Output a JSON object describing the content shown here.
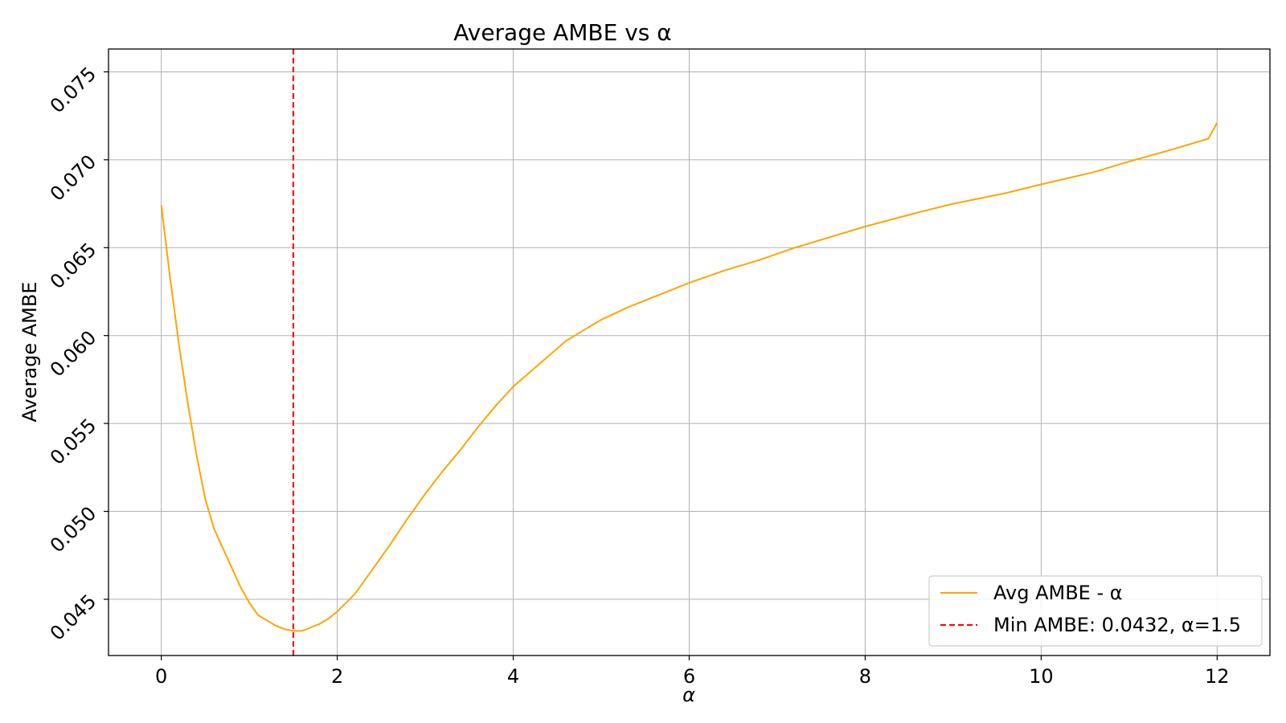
{
  "chart_data": {
    "type": "line",
    "title": "Average AMBE vs α",
    "xlabel": "α",
    "ylabel": "Average AMBE",
    "xlim": [
      -0.6,
      12.6
    ],
    "ylim": [
      0.0418,
      0.0763
    ],
    "x_ticks": [
      0,
      2,
      4,
      6,
      8,
      10,
      12
    ],
    "x_tick_labels": [
      "0",
      "2",
      "4",
      "6",
      "8",
      "10",
      "12"
    ],
    "y_ticks": [
      0.045,
      0.05,
      0.055,
      0.06,
      0.065,
      0.07,
      0.075
    ],
    "y_tick_labels": [
      "0.045",
      "0.050",
      "0.055",
      "0.060",
      "0.065",
      "0.070",
      "0.075"
    ],
    "grid": true,
    "legend_position": "lower-right",
    "series": [
      {
        "name": "Avg AMBE - α",
        "color": "#FFA500",
        "style": "solid",
        "x": [
          0,
          0.1,
          0.2,
          0.3,
          0.4,
          0.5,
          0.6,
          0.7,
          0.8,
          0.9,
          1.0,
          1.1,
          1.2,
          1.3,
          1.4,
          1.5,
          1.6,
          1.7,
          1.8,
          1.9,
          2.0,
          2.2,
          2.4,
          2.6,
          2.8,
          3.0,
          3.2,
          3.4,
          3.6,
          3.8,
          4.0,
          4.3,
          4.6,
          5.0,
          5.3,
          5.7,
          6.0,
          6.4,
          6.8,
          7.2,
          7.6,
          8.0,
          8.6,
          9.0,
          9.6,
          10.0,
          10.6,
          11.0,
          11.5,
          11.9,
          12.0
        ],
        "y": [
          0.0674,
          0.0633,
          0.0595,
          0.0562,
          0.0532,
          0.0507,
          0.049,
          0.0479,
          0.0468,
          0.0457,
          0.0448,
          0.0441,
          0.0438,
          0.0435,
          0.0433,
          0.0432,
          0.0432,
          0.0434,
          0.0436,
          0.0439,
          0.0443,
          0.0453,
          0.0467,
          0.0481,
          0.0496,
          0.051,
          0.0523,
          0.0535,
          0.0548,
          0.056,
          0.0571,
          0.0584,
          0.0597,
          0.0609,
          0.0616,
          0.0624,
          0.063,
          0.0637,
          0.0643,
          0.065,
          0.0656,
          0.0662,
          0.067,
          0.0675,
          0.0681,
          0.0686,
          0.0693,
          0.0699,
          0.0706,
          0.0712,
          0.0721
        ]
      },
      {
        "name": "Min AMBE: 0.0432, α=1.5",
        "color": "#FF0000",
        "style": "dashed",
        "vline_x": 1.5
      }
    ]
  }
}
